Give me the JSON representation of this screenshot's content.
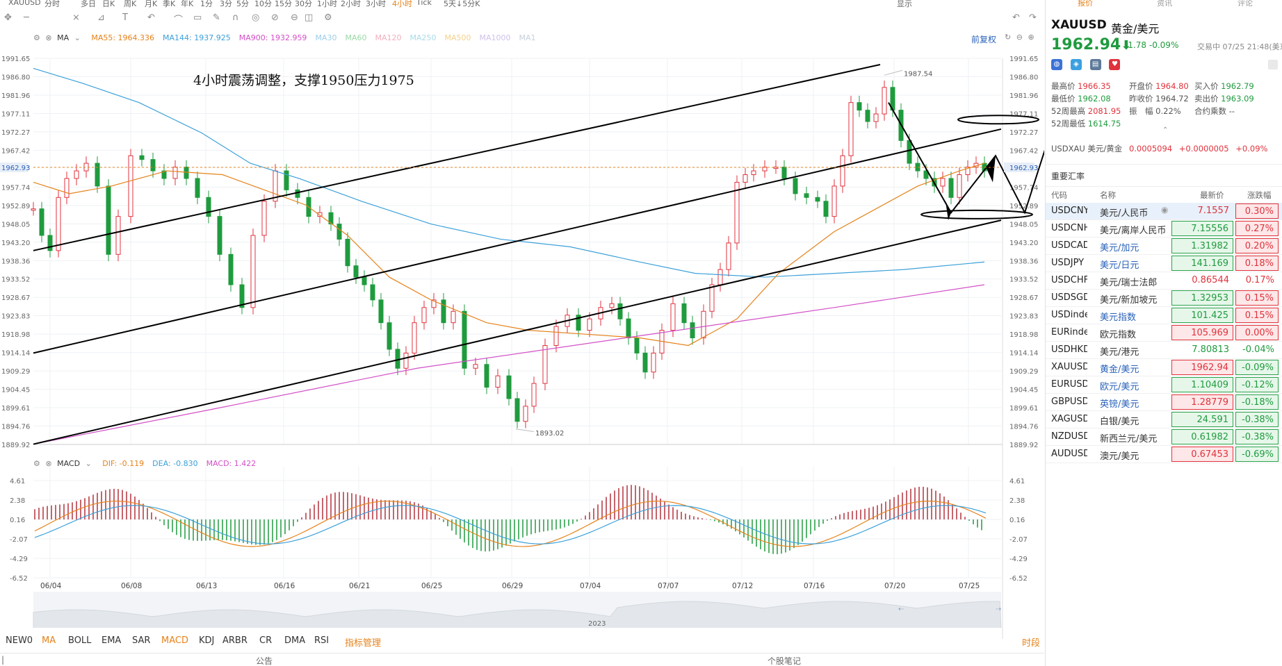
{
  "toolbar": {
    "symbol": "XAUUSD",
    "periods": [
      "分时",
      "多日",
      "日K",
      "周K",
      "月K",
      "季K",
      "年K",
      "1分",
      "3分",
      "5分",
      "10分",
      "15分",
      "30分",
      "1小时",
      "2小时",
      "3小时",
      "4小时",
      "Tick",
      "5天↓5分K"
    ],
    "active_period": "4小时",
    "right_items": [
      "显示"
    ]
  },
  "legend": {
    "ma_label": "MA",
    "ma_items": [
      {
        "name": "MA55:",
        "value": "1964.336",
        "color": "#e5821a"
      },
      {
        "name": "MA144:",
        "value": "1937.925",
        "color": "#3ba0d9"
      },
      {
        "name": "MA900:",
        "value": "1932.959",
        "color": "#d24fc7"
      },
      {
        "name": "MA30",
        "value": "",
        "color": "#9ecde8"
      },
      {
        "name": "MA60",
        "value": "",
        "color": "#9bd8a7"
      },
      {
        "name": "MA120",
        "value": "",
        "color": "#f2aebd"
      },
      {
        "name": "MA250",
        "value": "",
        "color": "#a8dbe8"
      },
      {
        "name": "MA500",
        "value": "",
        "color": "#f3d18c"
      },
      {
        "name": "MA1000",
        "value": "",
        "color": "#cfc1e8"
      },
      {
        "name": "MA1",
        "value": "",
        "color": "#c7d0dc"
      }
    ],
    "adjust_label": "前复权",
    "macd_label": "MACD",
    "macd_items": [
      {
        "name": "DIF:",
        "value": "-0.119",
        "color": "#e5821a"
      },
      {
        "name": "DEA:",
        "value": "-0.830",
        "color": "#3ba0d9"
      },
      {
        "name": "MACD:",
        "value": "1.422",
        "color": "#d24fc7"
      }
    ]
  },
  "annotation": "4小时震荡调整，支撑1950压力1975",
  "chart_data": {
    "type": "candlestick",
    "y_ticks": [
      "1991.65",
      "1986.80",
      "1981.96",
      "1977.11",
      "1972.27",
      "1967.42",
      "1962.93",
      "1957.74",
      "1952.89",
      "1948.05",
      "1943.20",
      "1938.36",
      "1933.52",
      "1928.67",
      "1923.83",
      "1918.98",
      "1914.14",
      "1909.29",
      "1904.45",
      "1899.61",
      "1894.76",
      "1889.92"
    ],
    "current_price": "1962.93",
    "high_label": "1987.54",
    "low_label": "1893.02",
    "x_ticks": [
      "06/04",
      "06/08",
      "06/13",
      "06/16",
      "06/21",
      "06/25",
      "06/29",
      "07/04",
      "07/07",
      "07/12",
      "07/16",
      "07/20",
      "07/25"
    ],
    "macd_ticks": [
      "4.61",
      "2.38",
      "0.16",
      "-2.07",
      "-4.29",
      "-6.52"
    ],
    "navigator_label": "2023",
    "ylim": [
      1889.92,
      1991.65
    ]
  },
  "bottom_tabs": [
    "NEW0",
    "MA",
    "BOLL",
    "EMA",
    "SAR",
    "MACD",
    "KDJ",
    "ARBR",
    "CR",
    "DMA",
    "RSI",
    "指标管理"
  ],
  "bottom_tabs_orange": [
    "MA",
    "MACD",
    "指标管理"
  ],
  "bottom_right": "时段",
  "footer": {
    "left": "公告",
    "right": "个股笔记"
  },
  "panel": {
    "tabs": [
      "报价",
      "资讯",
      "评论"
    ],
    "symbol": "XAUUSD",
    "name": "黄金/美元",
    "price": "1962.94",
    "arrow": "⬇",
    "change": "-1.78",
    "change_pct": "-0.09%",
    "status": "交易中 07/25 21:48(美东",
    "stats": [
      {
        "label": "最高价",
        "value": "1966.35",
        "cls": "red"
      },
      {
        "label": "开盘价",
        "value": "1964.80",
        "cls": "red"
      },
      {
        "label": "买入价",
        "value": "1962.79",
        "cls": "green"
      },
      {
        "label": "最低价",
        "value": "1962.08",
        "cls": "green"
      },
      {
        "label": "昨收价",
        "value": "1964.72",
        "cls": ""
      },
      {
        "label": "卖出价",
        "value": "1963.09",
        "cls": "green"
      },
      {
        "label": "52周最高",
        "value": "2081.95",
        "cls": "red"
      },
      {
        "label": "振　幅",
        "value": "0.22%",
        "cls": ""
      },
      {
        "label": "合约乘数",
        "value": "--",
        "cls": ""
      },
      {
        "label": "52周最低",
        "value": "1614.75",
        "cls": "green"
      }
    ],
    "cross": {
      "code": "USDXAU",
      "name": "美元/黄金",
      "price": "0.0005094",
      "chg": "+0.0000005",
      "pct": "+0.09%"
    },
    "fx_title": "重要汇率",
    "fx_head": [
      "代码",
      "名称",
      "最新价",
      "涨跌幅"
    ],
    "fx_rows": [
      {
        "code": "USDCNY",
        "name": "美元/人民币",
        "price": "7.1557",
        "pct": "0.30%",
        "dir": "up",
        "box": false,
        "blue": false
      },
      {
        "code": "USDCNH",
        "name": "美元/离岸人民币",
        "price": "7.15556",
        "pct": "0.27%",
        "dir": "up",
        "box": true,
        "blue": false
      },
      {
        "code": "USDCAD",
        "name": "美元/加元",
        "price": "1.31982",
        "pct": "0.20%",
        "dir": "up",
        "box": true,
        "blue": true
      },
      {
        "code": "USDJPY",
        "name": "美元/日元",
        "price": "141.169",
        "pct": "0.18%",
        "dir": "up",
        "box": true,
        "blue": true
      },
      {
        "code": "USDCHF",
        "name": "美元/瑞士法郎",
        "price": "0.86544",
        "pct": "0.17%",
        "dir": "up",
        "box": false,
        "blue": false
      },
      {
        "code": "USDSGD",
        "name": "美元/新加坡元",
        "price": "1.32953",
        "pct": "0.15%",
        "dir": "up",
        "box": true,
        "blue": false
      },
      {
        "code": "USDindex",
        "name": "美元指数",
        "price": "101.425",
        "pct": "0.15%",
        "dir": "up",
        "box": true,
        "blue": true
      },
      {
        "code": "EURindex",
        "name": "欧元指数",
        "price": "105.969",
        "pct": "0.00%",
        "dir": "down",
        "box": true,
        "blue": false
      },
      {
        "code": "USDHKD",
        "name": "美元/港元",
        "price": "7.80813",
        "pct": "-0.04%",
        "dir": "down",
        "box": false,
        "blue": false
      },
      {
        "code": "XAUUSD",
        "name": "黄金/美元",
        "price": "1962.94",
        "pct": "-0.09%",
        "dir": "down",
        "box": true,
        "blue": true
      },
      {
        "code": "EURUSD",
        "name": "欧元/美元",
        "price": "1.10409",
        "pct": "-0.12%",
        "dir": "down",
        "box": true,
        "blue": true
      },
      {
        "code": "GBPUSD",
        "name": "英镑/美元",
        "price": "1.28779",
        "pct": "-0.18%",
        "dir": "down",
        "box": true,
        "blue": true
      },
      {
        "code": "XAGUSD",
        "name": "白银/美元",
        "price": "24.591",
        "pct": "-0.38%",
        "dir": "down",
        "box": true,
        "blue": false
      },
      {
        "code": "NZDUSD",
        "name": "新西兰元/美元",
        "price": "0.61982",
        "pct": "-0.38%",
        "dir": "down",
        "box": true,
        "blue": false
      },
      {
        "code": "AUDUSD",
        "name": "澳元/美元",
        "price": "0.67453",
        "pct": "-0.69%",
        "dir": "down",
        "box": true,
        "blue": false
      }
    ]
  }
}
